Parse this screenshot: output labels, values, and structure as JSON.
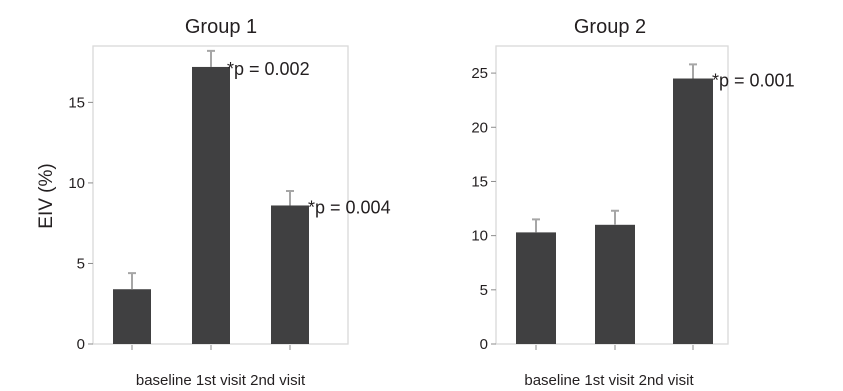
{
  "chart_data": [
    {
      "type": "bar",
      "title": "Group 1",
      "ylabel": "EIV  (%)",
      "xlabel": "",
      "categories": [
        "baseline",
        "1st visit",
        "2nd visit"
      ],
      "values": [
        3.4,
        17.2,
        8.6
      ],
      "errors": [
        1.0,
        1.0,
        0.9
      ],
      "ylim": [
        0,
        18.5
      ],
      "yticks": [
        "0",
        "5",
        "10",
        "15"
      ],
      "annotations": [
        "",
        "*p = 0.002",
        "*p = 0.004"
      ],
      "bar_color": "#404041",
      "grid": false
    },
    {
      "type": "bar",
      "title": "Group 2",
      "ylabel": "",
      "xlabel": "",
      "categories": [
        "baseline",
        "1st visit",
        "2nd visit"
      ],
      "values": [
        10.3,
        11.0,
        24.5
      ],
      "errors": [
        1.2,
        1.3,
        1.3
      ],
      "ylim": [
        0,
        27.5
      ],
      "yticks": [
        "0",
        "5",
        "10",
        "15",
        "20",
        "25"
      ],
      "annotations": [
        "",
        "",
        "*p = 0.001"
      ],
      "bar_color": "#404041",
      "grid": false
    }
  ]
}
